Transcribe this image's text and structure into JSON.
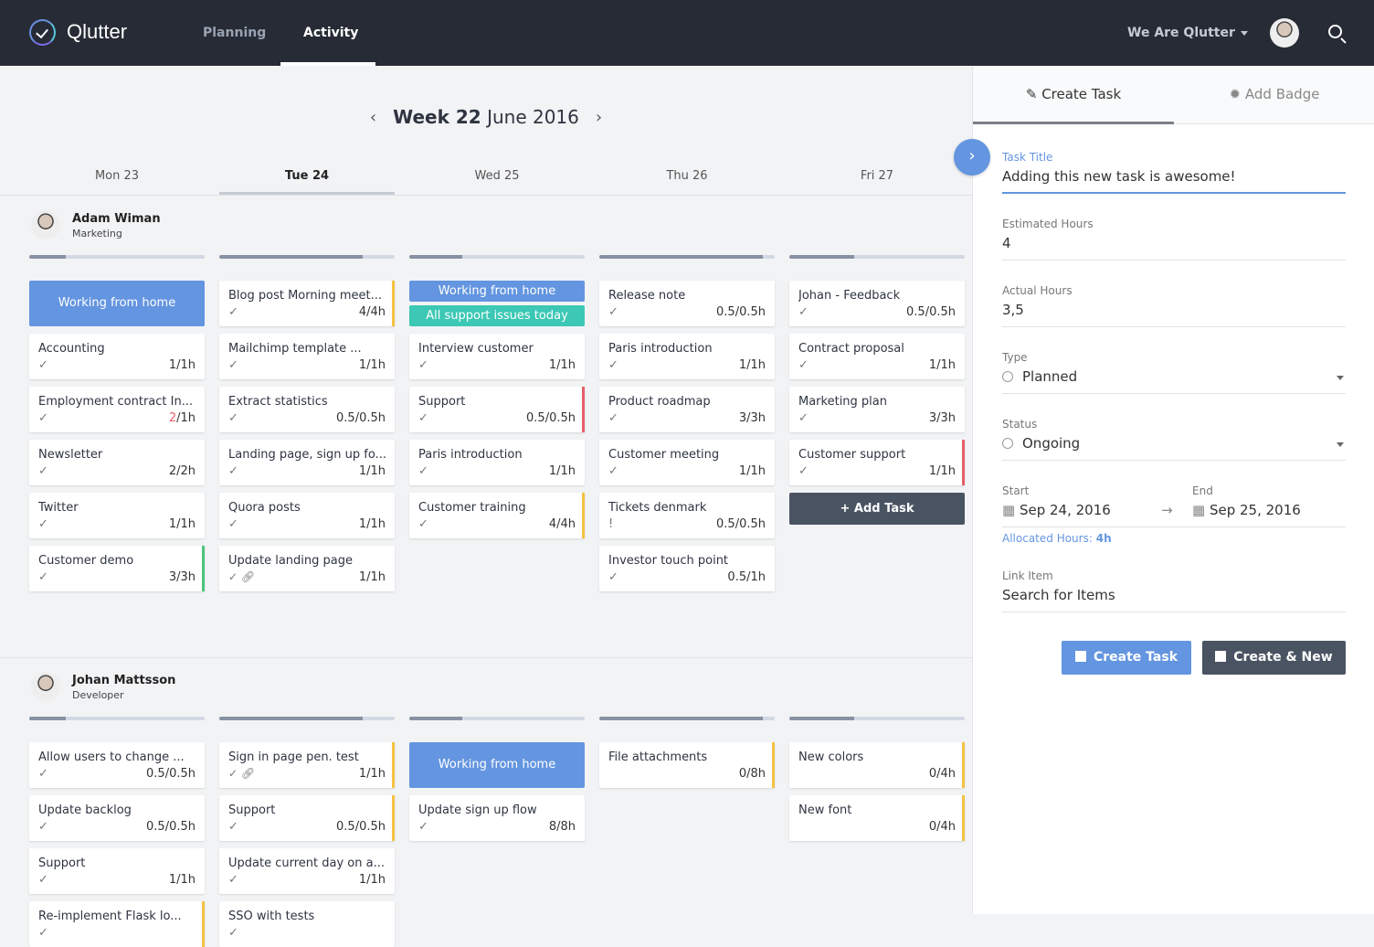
{
  "app": {
    "name": "Qlutter",
    "nav": [
      {
        "label": "Planning",
        "active": false
      },
      {
        "label": "Activity",
        "active": true
      }
    ],
    "org": "We Are Qlutter"
  },
  "week": {
    "prefix": "Week 22",
    "suffix": "June 2016",
    "days": [
      "Mon 23",
      "Tue 24",
      "Wed 25",
      "Thu 26",
      "Fri 27"
    ],
    "active_day": 1
  },
  "colors": {
    "accent": "#6395e0",
    "teal": "#3cc8b4",
    "yellow": "#f5c242",
    "red": "#e5606a",
    "green": "#4bc47d",
    "dark": "#262b35"
  },
  "people": [
    {
      "name": "Adam Wiman",
      "role": "Marketing",
      "progress": [
        0.21,
        0.82,
        0.3,
        0.93,
        0.37
      ],
      "columns": [
        [
          {
            "type": "wfh",
            "title": "Working from home"
          },
          {
            "title": "Accounting",
            "hours": "1/1h"
          },
          {
            "title": "Employment contract In...",
            "done": "2",
            "total": "/1h",
            "over": true
          },
          {
            "title": "Newsletter",
            "hours": "2/2h"
          },
          {
            "title": "Twitter",
            "hours": "1/1h"
          },
          {
            "title": "Customer demo",
            "hours": "3/3h",
            "accent": "green"
          }
        ],
        [
          {
            "title": "Blog post Morning meet...",
            "hours": "4/4h",
            "accent": "yellow"
          },
          {
            "title": "Mailchimp template ...",
            "hours": "1/1h"
          },
          {
            "title": "Extract statistics",
            "hours": "0.5/0.5h"
          },
          {
            "title": "Landing page, sign up fo...",
            "hours": "1/1h"
          },
          {
            "title": "Quora posts",
            "hours": "1/1h"
          },
          {
            "title": "Update landing page",
            "hours": "1/1h",
            "link": true
          }
        ],
        [
          {
            "type": "wfh2",
            "title": "Working from home",
            "sub": "All support issues today"
          },
          {
            "title": "Interview customer",
            "hours": "1/1h"
          },
          {
            "title": "Support",
            "hours": "0.5/0.5h",
            "accent": "red"
          },
          {
            "title": "Paris introduction",
            "hours": "1/1h"
          },
          {
            "title": "Customer training",
            "hours": "4/4h",
            "accent": "yellow"
          }
        ],
        [
          {
            "title": "Release note",
            "hours": "0.5/0.5h"
          },
          {
            "title": "Paris introduction",
            "hours": "1/1h"
          },
          {
            "title": "Product roadmap",
            "hours": "3/3h"
          },
          {
            "title": "Customer meeting",
            "hours": "1/1h"
          },
          {
            "title": "Tickets denmark",
            "hours": "0.5/0.5h",
            "alert": true
          },
          {
            "title": "Investor touch point",
            "hours": "0.5/1h"
          }
        ],
        [
          {
            "title": "Johan - Feedback",
            "hours": "0.5/0.5h"
          },
          {
            "title": "Contract proposal",
            "hours": "1/1h"
          },
          {
            "title": "Marketing plan",
            "hours": "3/3h"
          },
          {
            "title": "Customer support",
            "hours": "1/1h",
            "accent": "red"
          }
        ]
      ]
    },
    {
      "name": "Johan Mattsson",
      "role": "Developer",
      "progress": [
        0.21,
        0.82,
        0.3,
        0.93,
        0.37
      ],
      "columns": [
        [
          {
            "title": "Allow users to change ...",
            "hours": "0.5/0.5h"
          },
          {
            "title": "Update backlog",
            "hours": "0.5/0.5h"
          },
          {
            "title": "Support",
            "hours": "1/1h"
          },
          {
            "title": "Re-implement Flask lo...",
            "hours": "",
            "accent": "yellow"
          }
        ],
        [
          {
            "title": "Sign in page pen. test",
            "hours": "1/1h",
            "link": true,
            "accent": "yellow"
          },
          {
            "title": "Support",
            "hours": "0.5/0.5h",
            "accent": "yellow"
          },
          {
            "title": "Update current day on a...",
            "hours": "1/1h"
          },
          {
            "title": "SSO with tests",
            "hours": ""
          }
        ],
        [
          {
            "type": "wfh",
            "title": "Working from home"
          },
          {
            "title": "Update sign up flow",
            "hours": "8/8h"
          }
        ],
        [
          {
            "title": "File attachments",
            "hours": "0/8h",
            "nocheck": true,
            "accent": "yellow"
          }
        ],
        [
          {
            "title": "New colors",
            "hours": "0/4h",
            "nocheck": true,
            "accent": "yellow"
          },
          {
            "title": "New font",
            "hours": "0/4h",
            "nocheck": true,
            "accent": "yellow"
          }
        ]
      ]
    }
  ],
  "add_task": "+  Add Task",
  "panel": {
    "tabs": [
      "Create Task",
      "Add Badge"
    ],
    "task_title_label": "Task Title",
    "task_title": "Adding this new task is awesome!",
    "est_label": "Estimated Hours",
    "est": "4",
    "act_label": "Actual Hours",
    "act": "3,5",
    "type_label": "Type",
    "type": "Planned",
    "status_label": "Status",
    "status": "Ongoing",
    "start_label": "Start",
    "start": "Sep 24, 2016",
    "end_label": "End",
    "end": "Sep 25, 2016",
    "alloc_label": "Allocated Hours:",
    "alloc": "4h",
    "link_label": "Link Item",
    "link_placeholder": "Search for Items",
    "create": "Create Task",
    "create_new": "Create & New"
  }
}
